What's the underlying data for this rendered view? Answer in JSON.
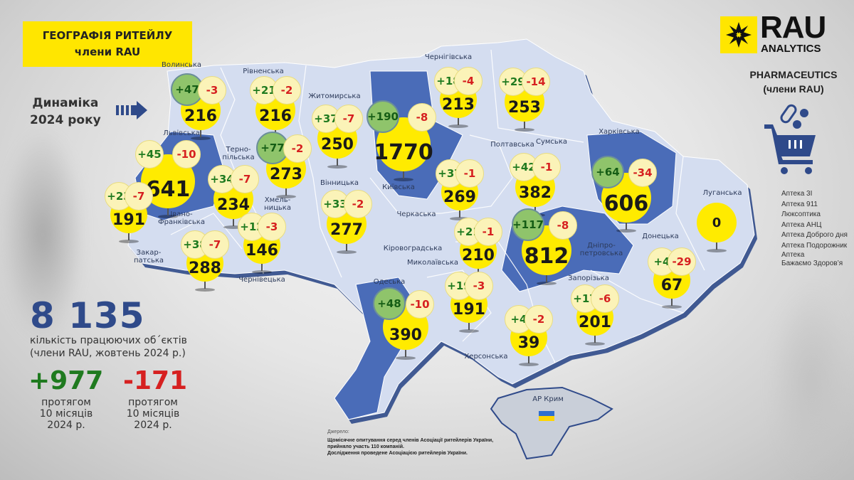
{
  "header": {
    "title_line1": "ГЕОГРАФІЯ РИТЕЙЛУ",
    "title_line2": "члени RAU",
    "dynamics_line1": "Динаміка",
    "dynamics_line2": "2024 року"
  },
  "brand": {
    "logo_text": "RAU",
    "logo_sub": "ANALYTICS",
    "segment_line1": "PHARMACEUTICS",
    "segment_line2": "(члени RAU)",
    "logo_icon": "star-ornament-icon",
    "segment_icon": "pharmacy-cart-icon"
  },
  "members": [
    "Аптека 3І",
    "Аптека 911",
    "Люксоптика",
    "Аптека АНЦ",
    "Аптека Доброго дня",
    "Аптека Подорожник",
    "Аптека\nБажаємо Здоров’я"
  ],
  "summary": {
    "total": "8 135",
    "total_label1": "кількість працюючих об´єктів",
    "total_label2": "(члени RAU, жовтень 2024 р.)",
    "opened": "+977",
    "closed": "-171",
    "period": "протягом\n10 місяців\n2024 р."
  },
  "colors": {
    "yellow": "#ffe600",
    "region_light": "#d4ddf0",
    "region_highlight": "#4a6cb8",
    "plus": "#1f7a1f",
    "minus": "#d62020",
    "total": "#2f4a8a"
  },
  "region_labels": [
    "Волинська",
    "Рівненська",
    "Житомирська",
    "Київська",
    "Чернігівська",
    "Сумська",
    "Львівська",
    "Терно-\nпільська",
    "Хмель-\nницька",
    "Вінницька",
    "Полтавська",
    "Харківська",
    "Луганська",
    "Закар-\nпатська",
    "Івано-\nФранківська",
    "Чернівецька",
    "Черкаська",
    "Кіровоградська",
    "Дніпро-\nпетровська",
    "Донецька",
    "Одеська",
    "Миколаївська",
    "Херсонська",
    "Запорізька",
    "АР Крим"
  ],
  "regions": [
    {
      "name": "Волинська",
      "total": "216",
      "plus": "+47",
      "minus": "-3",
      "plus_highlight": true
    },
    {
      "name": "Рівненська",
      "total": "216",
      "plus": "+21",
      "minus": "-2"
    },
    {
      "name": "Житомирська",
      "total": "250",
      "plus": "+37",
      "minus": "-7"
    },
    {
      "name": "Київська",
      "total": "1770",
      "plus": "+190",
      "minus": "-8",
      "plus_highlight": true
    },
    {
      "name": "Чернігівська",
      "total": "213",
      "plus": "+18",
      "minus": "-4"
    },
    {
      "name": "Сумська",
      "total": "253",
      "plus": "+29",
      "minus": "-14"
    },
    {
      "name": "Львівська",
      "total": "641",
      "plus": "+45",
      "minus": "-10"
    },
    {
      "name": "Тернопільська",
      "total": "234",
      "plus": "+34",
      "minus": "-7"
    },
    {
      "name": "Хмельницька",
      "total": "273",
      "plus": "+77",
      "minus": "-2",
      "plus_highlight": true
    },
    {
      "name": "Вінницька",
      "total": "277",
      "plus": "+33",
      "minus": "-2"
    },
    {
      "name": "Полтавська",
      "total": "382",
      "plus": "+42",
      "minus": "-1"
    },
    {
      "name": "Харківська",
      "total": "606",
      "plus": "+64",
      "minus": "-34",
      "plus_highlight": true
    },
    {
      "name": "Луганська",
      "total": "0"
    },
    {
      "name": "Закарпатська",
      "total": "191",
      "plus": "+23",
      "minus": "-7"
    },
    {
      "name": "Івано-Франківська",
      "total": "288",
      "plus": "+38",
      "minus": "-7"
    },
    {
      "name": "Чернівецька",
      "total": "146",
      "plus": "+12",
      "minus": "-3"
    },
    {
      "name": "Черкаська",
      "total": "269",
      "plus": "+37",
      "minus": "-1"
    },
    {
      "name": "Кіровоградська",
      "total": "210",
      "plus": "+21",
      "minus": "-1"
    },
    {
      "name": "Дніпропетровська",
      "total": "812",
      "plus": "+117",
      "minus": "-8",
      "plus_highlight": true
    },
    {
      "name": "Донецька",
      "total": "67",
      "plus": "+4",
      "minus": "-29"
    },
    {
      "name": "Одеська",
      "total": "390",
      "plus": "+48",
      "minus": "-10",
      "plus_highlight": true
    },
    {
      "name": "Миколаївська",
      "total": "191",
      "plus": "+19",
      "minus": "-3"
    },
    {
      "name": "Херсонська",
      "total": "39",
      "plus": "+4",
      "minus": "-2"
    },
    {
      "name": "Запорізька",
      "total": "201",
      "plus": "+17",
      "minus": "-6"
    }
  ],
  "source": {
    "heading": "Джерело:",
    "line1": "Щомісячне опитування серед членів Асоціації ритейлерів України,",
    "line2": "прийняло участь 110 компаній.",
    "line3": "Дослідження проведене Асоціацією ритейлерів України."
  }
}
